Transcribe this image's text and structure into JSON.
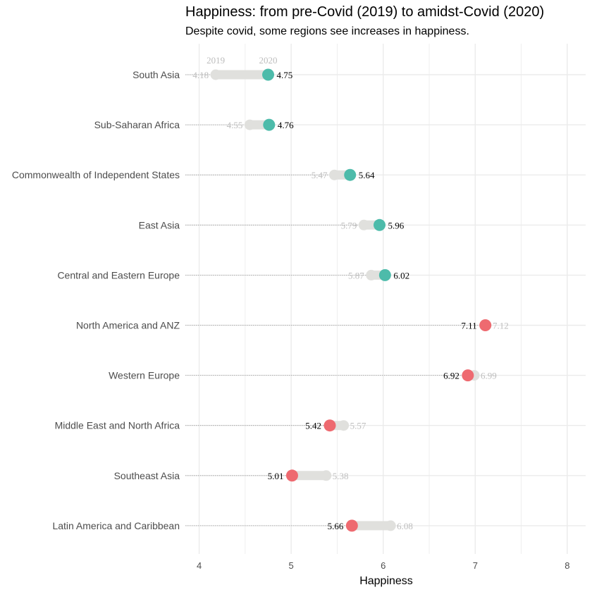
{
  "chart_data": {
    "type": "dumbbell",
    "title": "Happiness: from pre-Covid (2019) to amidst-Covid (2020)",
    "subtitle": "Despite covid, some regions see increases in happiness.",
    "xlabel": "Happiness",
    "ylabel": "",
    "xlim": [
      3.85,
      8.2
    ],
    "x_ticks": [
      4,
      5,
      6,
      7,
      8
    ],
    "grid": true,
    "year_labels": [
      "2019",
      "2020"
    ],
    "colors": {
      "increase": "#4dbbaa",
      "decrease": "#ee6a70",
      "baseline": "#e0e0dd",
      "label_2019": "#bdbdbd",
      "grid": "#ebebeb",
      "guide": "#9e9e9e"
    },
    "rows": [
      {
        "region": "South Asia",
        "v2019": 4.18,
        "v2020": 4.75,
        "label2019": "4.18",
        "label2020": "4.75"
      },
      {
        "region": "Sub-Saharan Africa",
        "v2019": 4.55,
        "v2020": 4.76,
        "label2019": "4.55",
        "label2020": "4.76"
      },
      {
        "region": "Commonwealth of Independent States",
        "v2019": 5.47,
        "v2020": 5.64,
        "label2019": "5.47",
        "label2020": "5.64"
      },
      {
        "region": "East Asia",
        "v2019": 5.79,
        "v2020": 5.96,
        "label2019": "5.79",
        "label2020": "5.96"
      },
      {
        "region": "Central and Eastern Europe",
        "v2019": 5.87,
        "v2020": 6.02,
        "label2019": "5.87",
        "label2020": "6.02"
      },
      {
        "region": "North America and ANZ",
        "v2019": 7.12,
        "v2020": 7.11,
        "label2019": "7.12",
        "label2020": "7.11"
      },
      {
        "region": "Western Europe",
        "v2019": 6.99,
        "v2020": 6.92,
        "label2019": "6.99",
        "label2020": "6.92"
      },
      {
        "region": "Middle East and North Africa",
        "v2019": 5.57,
        "v2020": 5.42,
        "label2019": "5.57",
        "label2020": "5.42"
      },
      {
        "region": "Southeast Asia",
        "v2019": 5.38,
        "v2020": 5.01,
        "label2019": "5.38",
        "label2020": "5.01"
      },
      {
        "region": "Latin America and Caribbean",
        "v2019": 6.08,
        "v2020": 5.66,
        "label2019": "6.08",
        "label2020": "5.66"
      }
    ]
  }
}
